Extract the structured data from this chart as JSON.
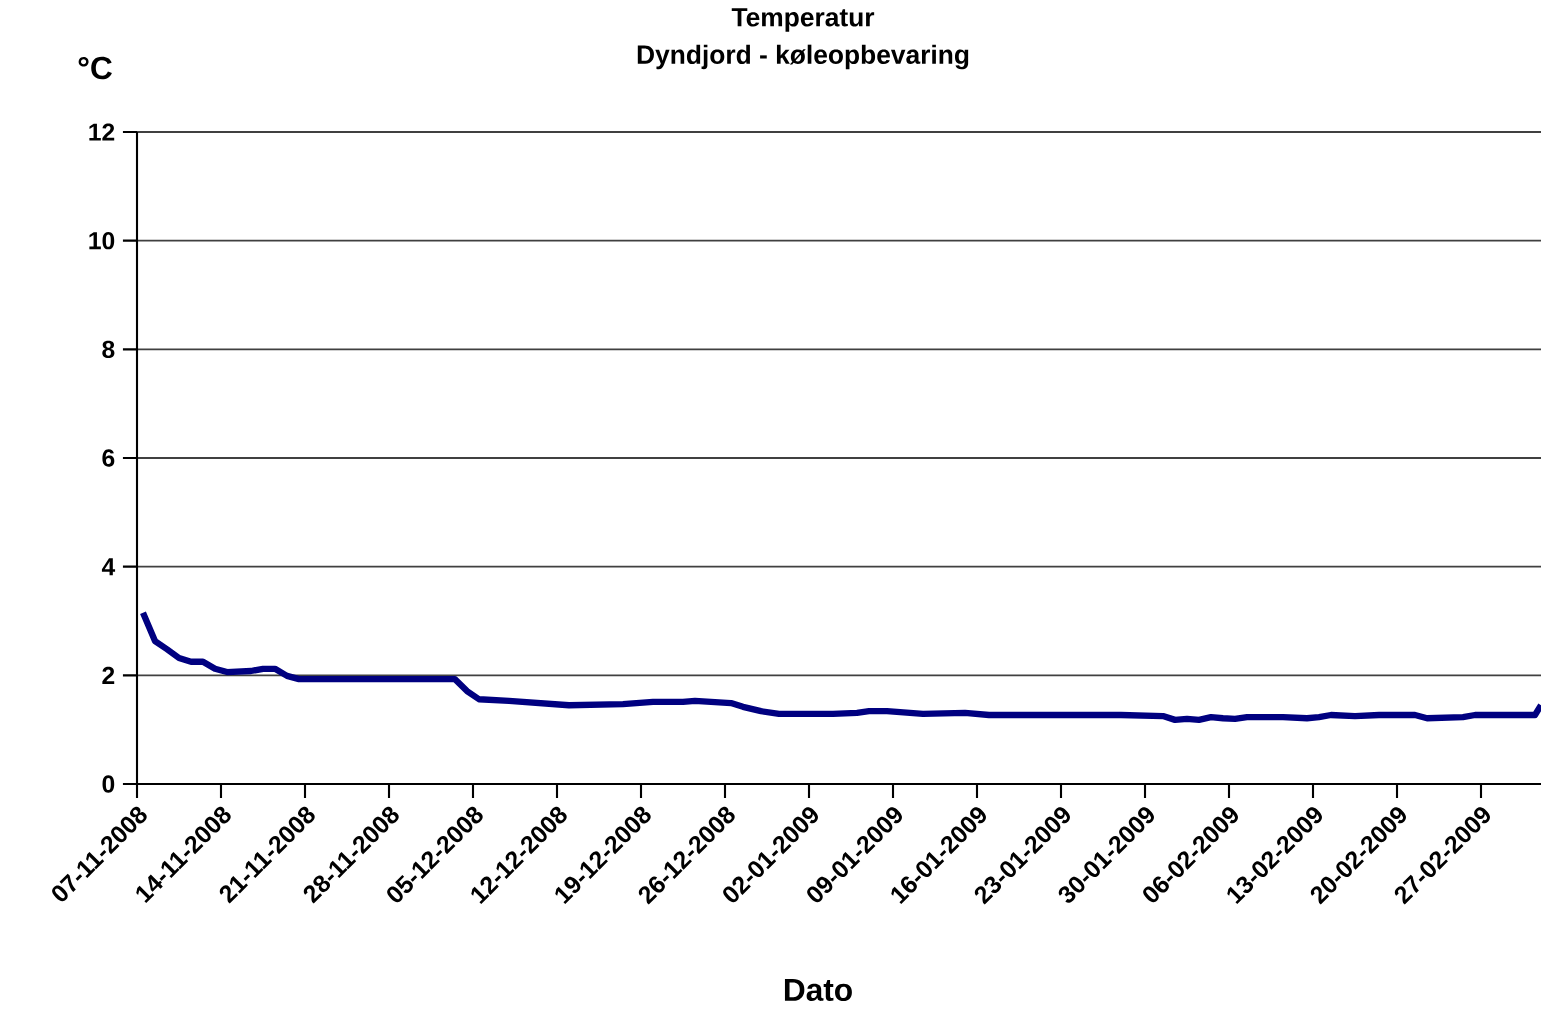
{
  "chart_data": {
    "type": "line",
    "title": "Temperatur",
    "subtitle": "Dyndjord - køleopbevaring",
    "xlabel": "Dato",
    "ylabel": "°C",
    "x": [
      "2008-11-07T12:00",
      "2008-11-08T12:00",
      "2008-11-09T12:00",
      "2008-11-10T12:00",
      "2008-11-11T12:00",
      "2008-11-12T12:00",
      "2008-11-13T12:00",
      "2008-11-14T12:00",
      "2008-11-16T12:00",
      "2008-11-17T12:00",
      "2008-11-18T12:00",
      "2008-11-19T12:00",
      "2008-11-20T12:00",
      "2008-12-03T12:00",
      "2008-12-04T12:00",
      "2008-12-05T12:00",
      "2008-12-08",
      "2008-12-13",
      "2008-12-17T12:00",
      "2008-12-20",
      "2008-12-22T12:00",
      "2008-12-23T12:00",
      "2008-12-26T12:00",
      "2008-12-27T12:00",
      "2008-12-29",
      "2008-12-30T12:00",
      "2009-01-04",
      "2009-01-06",
      "2009-01-07",
      "2009-01-08T12:00",
      "2009-01-11T12:00",
      "2009-01-15",
      "2009-01-17",
      "2009-01-21T12:00",
      "2009-01-28",
      "2009-01-31T12:00",
      "2009-02-01T12:00",
      "2009-02-02T12:00",
      "2009-02-03T12:00",
      "2009-02-04T12:00",
      "2009-02-05T12:00",
      "2009-02-06T12:00",
      "2009-02-07T12:00",
      "2009-02-10T12:00",
      "2009-02-12T12:00",
      "2009-02-13T12:00",
      "2009-02-14T12:00",
      "2009-02-16T12:00",
      "2009-02-18T12:00",
      "2009-02-21T12:00",
      "2009-02-22T12:00",
      "2009-02-25T12:00",
      "2009-02-26T12:00",
      "2009-03-03T12:00",
      "2009-03-04"
    ],
    "series": [
      {
        "color": "#000080",
        "values": [
          3.15,
          2.63,
          2.48,
          2.32,
          2.25,
          2.25,
          2.12,
          2.06,
          2.08,
          2.12,
          2.12,
          1.99,
          1.93,
          1.93,
          1.71,
          1.56,
          1.53,
          1.45,
          1.47,
          1.51,
          1.51,
          1.53,
          1.49,
          1.42,
          1.34,
          1.29,
          1.29,
          1.31,
          1.34,
          1.34,
          1.29,
          1.31,
          1.27,
          1.27,
          1.27,
          1.25,
          1.18,
          1.2,
          1.18,
          1.23,
          1.21,
          1.2,
          1.23,
          1.23,
          1.21,
          1.23,
          1.27,
          1.25,
          1.27,
          1.27,
          1.21,
          1.23,
          1.27,
          1.27,
          1.45
        ]
      }
    ],
    "xlim": [
      "2008-11-07",
      "2009-03-04"
    ],
    "xticks": [
      {
        "value": "2008-11-07",
        "label": "07-11-2008"
      },
      {
        "value": "2008-11-14",
        "label": "14-11-2008"
      },
      {
        "value": "2008-11-21",
        "label": "21-11-2008"
      },
      {
        "value": "2008-11-28",
        "label": "28-11-2008"
      },
      {
        "value": "2008-12-05",
        "label": "05-12-2008"
      },
      {
        "value": "2008-12-12",
        "label": "12-12-2008"
      },
      {
        "value": "2008-12-19",
        "label": "19-12-2008"
      },
      {
        "value": "2008-12-26",
        "label": "26-12-2008"
      },
      {
        "value": "2009-01-02",
        "label": "02-01-2009"
      },
      {
        "value": "2009-01-09",
        "label": "09-01-2009"
      },
      {
        "value": "2009-01-16",
        "label": "16-01-2009"
      },
      {
        "value": "2009-01-23",
        "label": "23-01-2009"
      },
      {
        "value": "2009-01-30",
        "label": "30-01-2009"
      },
      {
        "value": "2009-02-06",
        "label": "06-02-2009"
      },
      {
        "value": "2009-02-13",
        "label": "13-02-2009"
      },
      {
        "value": "2009-02-20",
        "label": "20-02-2009"
      },
      {
        "value": "2009-02-27",
        "label": "27-02-2009"
      }
    ],
    "ylim": [
      0,
      12
    ],
    "yticks": [
      0,
      2,
      4,
      6,
      8,
      10,
      12
    ],
    "grid": "y",
    "marker": "none",
    "line_style": "solid"
  }
}
